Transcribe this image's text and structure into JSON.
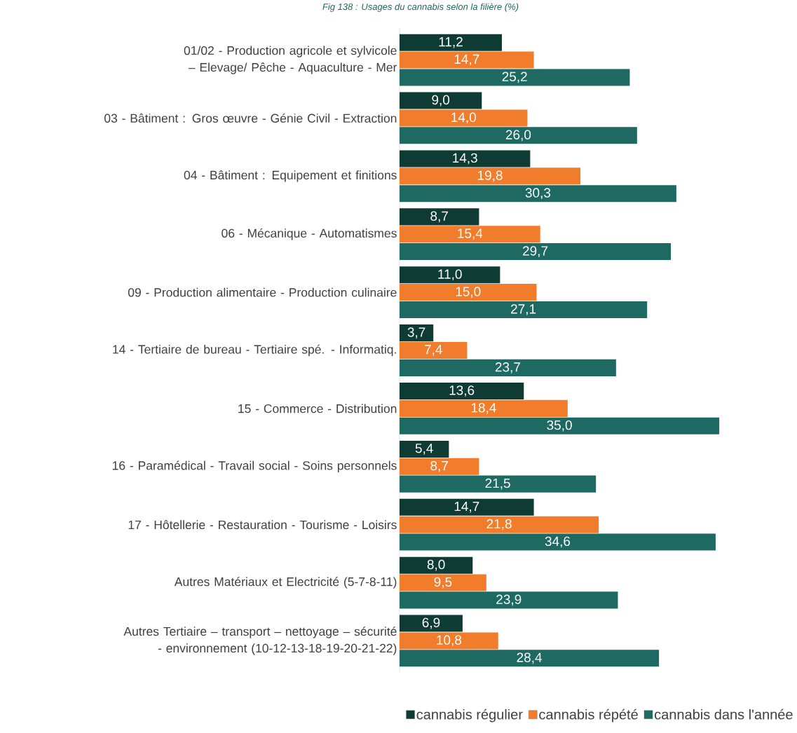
{
  "chart_data": {
    "type": "bar",
    "orientation": "horizontal",
    "title": "Fig 138 : Usages du cannabis selon la filière (%)",
    "categories": [
      "01/02 - Production agricole et sylvicole – Elevage/ Pêche - Aquaculture - Mer",
      "03 - Bâtiment : Gros œuvre - Génie Civil - Extraction",
      "04 - Bâtiment : Equipement et finitions",
      "06 - Mécanique - Automatismes",
      "09 - Production alimentaire - Production culinaire",
      "14 - Tertiaire de bureau - Tertiaire spé. - Informatiq.",
      "15 - Commerce - Distribution",
      "16 - Paramédical - Travail social - Soins personnels",
      "17 - Hôtellerie - Restauration - Tourisme - Loisirs",
      "Autres Matériaux et Electricité (5-7-8-11)",
      "Autres Tertiaire – transport – nettoyage – sécurité - environnement (10-12-13-18-19-20-21-22)"
    ],
    "series": [
      {
        "name": "cannabis régulier",
        "color": "#0e3b34",
        "values": [
          11.2,
          9.0,
          14.3,
          8.7,
          11.0,
          3.7,
          13.6,
          5.4,
          14.7,
          8.0,
          6.9
        ],
        "value_labels": [
          "11,2",
          "9,0",
          "14,3",
          "8,7",
          "11,0",
          "3,7",
          "13,6",
          "5,4",
          "14,7",
          "8,0",
          "6,9"
        ]
      },
      {
        "name": "cannabis répété",
        "color": "#f07c2c",
        "values": [
          14.7,
          14.0,
          19.8,
          15.4,
          15.0,
          7.4,
          18.4,
          8.7,
          21.8,
          9.5,
          10.8
        ],
        "value_labels": [
          "14,7",
          "14,0",
          "19,8",
          "15,4",
          "15,0",
          "7,4",
          "18,4",
          "8,7",
          "21,8",
          "9,5",
          "10,8"
        ]
      },
      {
        "name": "cannabis dans l'année",
        "color": "#1e6a62",
        "values": [
          25.2,
          26.0,
          30.3,
          29.7,
          27.1,
          23.7,
          35.0,
          21.5,
          34.6,
          23.9,
          28.4
        ],
        "value_labels": [
          "25,2",
          "26,0",
          "30,3",
          "29,7",
          "27,1",
          "23,7",
          "35,0",
          "21,5",
          "34,6",
          "23,9",
          "28,4"
        ]
      }
    ],
    "legend": "bottom right"
  }
}
